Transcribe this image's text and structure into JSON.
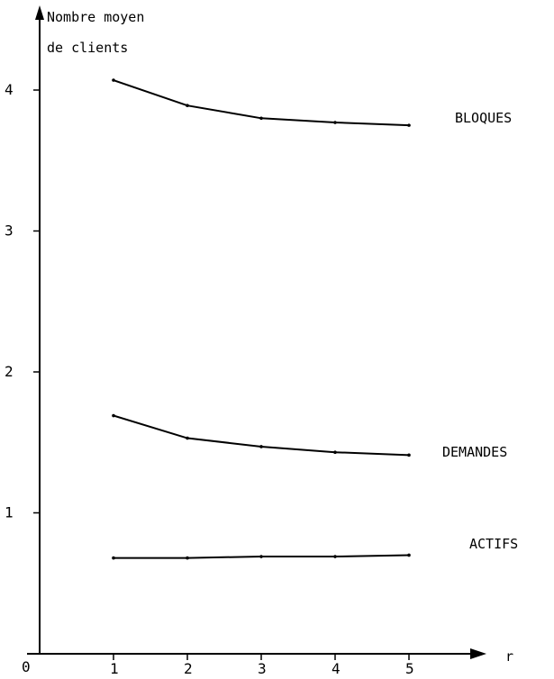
{
  "chart_data": {
    "type": "line",
    "ylabel_lines": [
      "Nombre moyen",
      "de clients"
    ],
    "xlabel": "r",
    "origin_label": "0",
    "x": [
      1,
      2,
      3,
      4,
      5
    ],
    "x_ticks": [
      "1",
      "2",
      "3",
      "4",
      "5"
    ],
    "y_ticks": [
      "1",
      "2",
      "3",
      "4"
    ],
    "grid": false,
    "series": [
      {
        "name": "BLOQUES",
        "values": [
          4.07,
          3.89,
          3.8,
          3.77,
          3.75
        ]
      },
      {
        "name": "DEMANDES",
        "values": [
          1.69,
          1.53,
          1.47,
          1.43,
          1.41
        ]
      },
      {
        "name": "ACTIFS",
        "values": [
          0.68,
          0.68,
          0.69,
          0.69,
          0.7
        ]
      }
    ]
  }
}
